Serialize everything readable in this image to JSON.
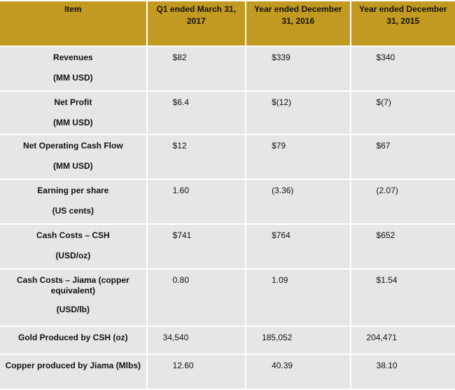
{
  "table": {
    "headers": [
      "Item",
      "Q1 ended March 31, 2017",
      "Year ended December 31, 2016",
      "Year ended December 31, 2015"
    ],
    "rows": [
      {
        "label": "Revenues",
        "unit": "(MM USD)",
        "values": [
          "$82",
          "$339",
          "$340"
        ]
      },
      {
        "label": "Net Profit",
        "unit": "(MM USD)",
        "values": [
          "$6.4",
          "$(12)",
          "$(7)"
        ]
      },
      {
        "label": "Net Operating Cash Flow",
        "unit": "(MM USD)",
        "values": [
          "$12",
          "$79",
          "$67"
        ]
      },
      {
        "label": "Earning per share",
        "unit": "(US cents)",
        "values": [
          "1.60",
          "(3.36)",
          "(2.07)"
        ]
      },
      {
        "label": "Cash Costs – CSH",
        "unit": "(USD/oz)",
        "values": [
          "$741",
          "$764",
          "$652"
        ]
      },
      {
        "label": "Cash Costs – Jiama (copper equivalent)",
        "unit": "(USD/lb)",
        "values": [
          "0.80",
          "1.09",
          "$1.54"
        ]
      },
      {
        "label": "Gold Produced by CSH (oz)",
        "unit": "",
        "values": [
          "34,540",
          "185,052",
          "204,471"
        ]
      },
      {
        "label": "Copper produced by Jiama (Mlbs)",
        "unit": "",
        "values": [
          "12.60",
          "40.39",
          "38.10"
        ]
      }
    ]
  },
  "colors": {
    "header_bg": "#c29a21",
    "cell_bg": "#e6e6e6"
  }
}
